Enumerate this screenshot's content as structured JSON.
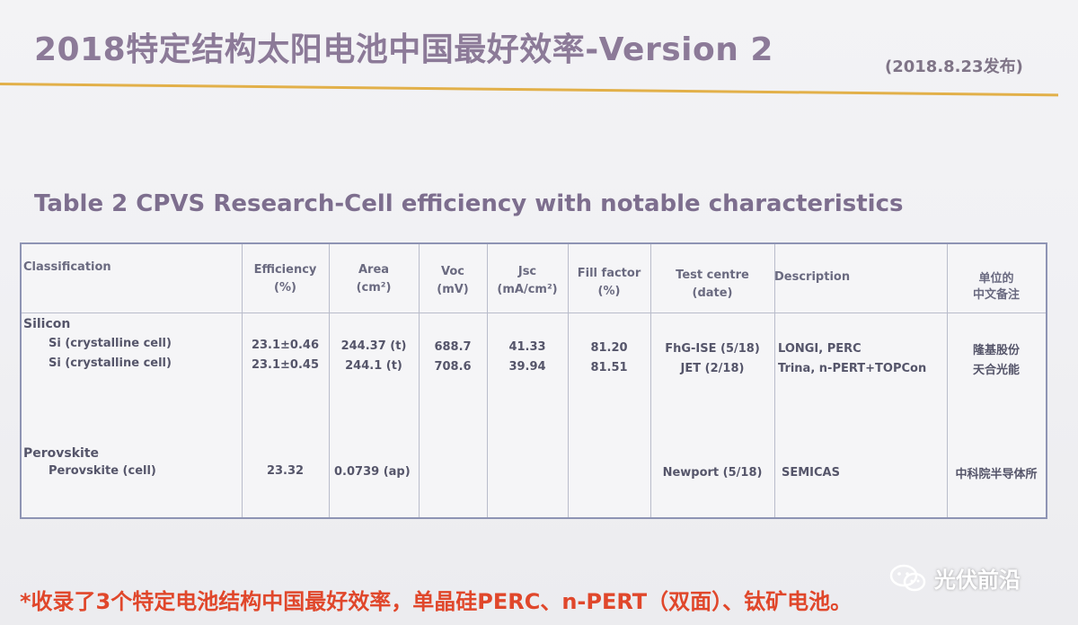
{
  "slide": {
    "title": "2018特定结构太阳电池中国最好效率-Version 2",
    "date": "(2018.8.23发布)",
    "table_caption": "Table 2 CPVS Research-Cell efficiency with notable characteristics",
    "footnote": "*收录了3个特定电池结构中国最好效率，单晶硅PERC、n-PERT（双面）、钛矿电池。",
    "watermark": "光伏前沿"
  },
  "table": {
    "headers": {
      "classification": "Classification",
      "efficiency": "Efficiency",
      "efficiency_unit": "(%)",
      "area": "Area",
      "area_unit": "(cm²)",
      "voc": "Voc",
      "voc_unit": "(mV)",
      "jsc": "Jsc",
      "jsc_unit": "(mA/cm²)",
      "ff": "Fill factor",
      "ff_unit": "(%)",
      "test": "Test centre",
      "test_unit": "(date)",
      "description": "Description",
      "cn_note_1": "单位的",
      "cn_note_2": "中文备注"
    },
    "groups": [
      {
        "name": "Silicon",
        "rows": [
          {
            "cls": "Si (crystalline cell)",
            "eff": "23.1±0.46",
            "area": "244.37 (t)",
            "voc": "688.7",
            "jsc": "41.33",
            "ff": "81.20",
            "test": "FhG-ISE (5/18)",
            "desc": "LONGI, PERC",
            "cn": "隆基股份"
          },
          {
            "cls": "Si (crystalline cell)",
            "eff": "23.1±0.45",
            "area": "244.1 (t)",
            "voc": "708.6",
            "jsc": "39.94",
            "ff": "81.51",
            "test": "JET (2/18)",
            "desc": "Trina, n-PERT+TOPCon",
            "cn": "天合光能"
          }
        ]
      },
      {
        "name": "Perovskite",
        "rows": [
          {
            "cls": "Perovskite (cell)",
            "eff": "23.32",
            "area": "0.0739 (ap)",
            "voc": "",
            "jsc": "",
            "ff": "",
            "test": "Newport (5/18)",
            "desc": "SEMICAS",
            "cn": "中科院半导体所"
          }
        ]
      }
    ]
  },
  "colors": {
    "title": "#8c7a98",
    "rule": "#e2b049",
    "footnote": "#e0472b",
    "grid": "#8e94b4"
  }
}
